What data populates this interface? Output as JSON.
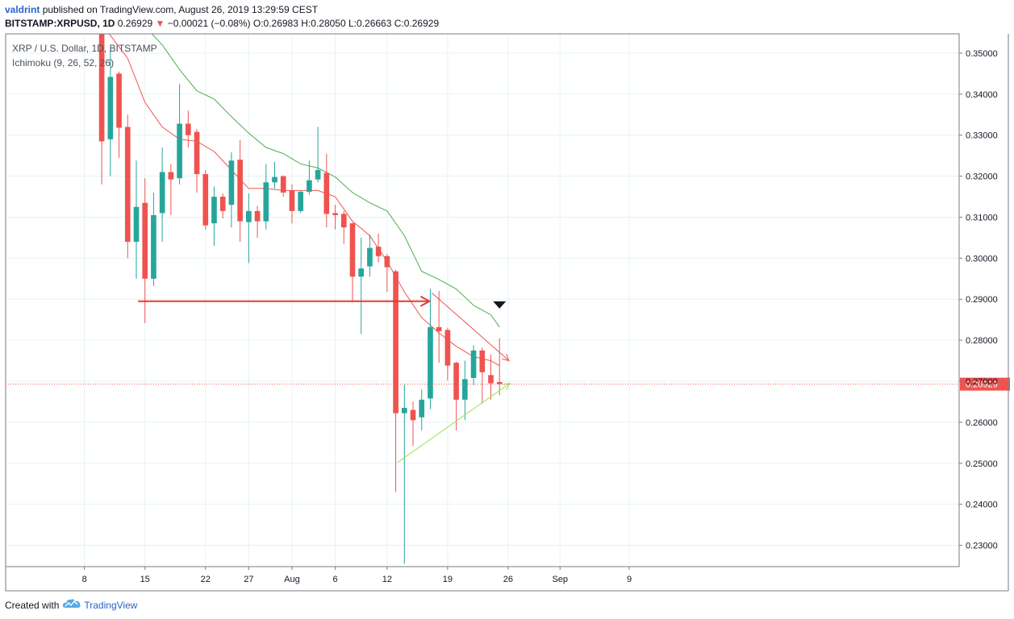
{
  "header": {
    "author": "valdrint",
    "published_text": "published on TradingView.com, August 26, 2019 13:29:59 CEST",
    "symbol_interval": "BITSTAMP:XRPUSD, 1D",
    "last_price": "0.26929",
    "change_text": "−0.00021 (−0.08%)",
    "ohlc": {
      "o_label": "O:",
      "o": "0.26983",
      "h_label": "H:",
      "h": "0.28050",
      "l_label": "L:",
      "l": "0.26663",
      "c_label": "C:",
      "c": "0.26929"
    }
  },
  "legend": {
    "title": "XRP / U.S. Dollar, 1D, BITSTAMP",
    "indicator": "Ichimoku (9, 26, 52, 26)"
  },
  "footer": {
    "created_with": "Created with",
    "brand": "TradingView"
  },
  "chart_data": {
    "type": "candlestick",
    "ylim": [
      0.2248,
      0.3547
    ],
    "y_ticks": [
      0.23,
      0.24,
      0.25,
      0.26,
      0.27,
      0.28,
      0.29,
      0.3,
      0.31,
      0.32,
      0.33,
      0.34,
      0.35
    ],
    "y_tick_labels": [
      "0.23000",
      "0.24000",
      "0.25000",
      "0.26000",
      "0.27000",
      "0.28000",
      "0.29000",
      "0.30000",
      "0.31000",
      "0.32000",
      "0.33000",
      "0.34000",
      "0.35000"
    ],
    "x_axis": {
      "day_range": [
        4.3,
        43.2
      ],
      "ticks": [
        {
          "day": 8,
          "label": "8"
        },
        {
          "day": 15,
          "label": "15"
        },
        {
          "day": 22,
          "label": "22"
        },
        {
          "day": 27,
          "label": "27"
        },
        {
          "day": 32,
          "label": "Aug"
        },
        {
          "day": 37,
          "label": "6"
        },
        {
          "day": 43,
          "label": "12"
        },
        {
          "day": 50,
          "label": "19"
        },
        {
          "day": 57,
          "label": "26"
        },
        {
          "day": 63,
          "label": "Sep"
        },
        {
          "day": 71,
          "label": "9"
        }
      ]
    },
    "last_price_value": 0.26929,
    "last_price_label": "0.26929",
    "colors": {
      "up": "#26a69a",
      "down": "#ef5350",
      "grid": "#e6f3f5",
      "conversion_line": "#ef5350",
      "base_line": "#4caf50",
      "support_line": "#a5e86b",
      "resistance_line": "#ef5350",
      "horizontal_arrow": "#e53935",
      "marker": "#131722",
      "price_tag": "#ef5350"
    },
    "candles": [
      {
        "day": 10,
        "o": 0.355,
        "h": 0.36,
        "l": 0.318,
        "c": 0.3285
      },
      {
        "day": 11,
        "o": 0.329,
        "h": 0.351,
        "l": 0.32,
        "c": 0.3442
      },
      {
        "day": 12,
        "o": 0.345,
        "h": 0.3455,
        "l": 0.3245,
        "c": 0.3318
      },
      {
        "day": 13,
        "o": 0.332,
        "h": 0.335,
        "l": 0.3,
        "c": 0.304
      },
      {
        "day": 14,
        "o": 0.304,
        "h": 0.3238,
        "l": 0.295,
        "c": 0.3125
      },
      {
        "day": 15,
        "o": 0.3135,
        "h": 0.3195,
        "l": 0.2842,
        "c": 0.295
      },
      {
        "day": 16,
        "o": 0.295,
        "h": 0.316,
        "l": 0.2932,
        "c": 0.3105
      },
      {
        "day": 17,
        "o": 0.311,
        "h": 0.327,
        "l": 0.304,
        "c": 0.321
      },
      {
        "day": 18,
        "o": 0.321,
        "h": 0.323,
        "l": 0.3105,
        "c": 0.3192
      },
      {
        "day": 19,
        "o": 0.3195,
        "h": 0.3425,
        "l": 0.318,
        "c": 0.3328
      },
      {
        "day": 20,
        "o": 0.3328,
        "h": 0.336,
        "l": 0.327,
        "c": 0.33
      },
      {
        "day": 21,
        "o": 0.3308,
        "h": 0.3315,
        "l": 0.316,
        "c": 0.3205
      },
      {
        "day": 22,
        "o": 0.3205,
        "h": 0.3215,
        "l": 0.307,
        "c": 0.308
      },
      {
        "day": 23,
        "o": 0.3085,
        "h": 0.3175,
        "l": 0.303,
        "c": 0.315
      },
      {
        "day": 24,
        "o": 0.315,
        "h": 0.3158,
        "l": 0.3097,
        "c": 0.3115
      },
      {
        "day": 25,
        "o": 0.313,
        "h": 0.3258,
        "l": 0.3075,
        "c": 0.3238
      },
      {
        "day": 26,
        "o": 0.324,
        "h": 0.3288,
        "l": 0.304,
        "c": 0.309
      },
      {
        "day": 27,
        "o": 0.3088,
        "h": 0.3158,
        "l": 0.2988,
        "c": 0.3115
      },
      {
        "day": 28,
        "o": 0.3115,
        "h": 0.3128,
        "l": 0.305,
        "c": 0.309
      },
      {
        "day": 29,
        "o": 0.309,
        "h": 0.323,
        "l": 0.307,
        "c": 0.3185
      },
      {
        "day": 30,
        "o": 0.3185,
        "h": 0.3235,
        "l": 0.317,
        "c": 0.3198
      },
      {
        "day": 31,
        "o": 0.32,
        "h": 0.3202,
        "l": 0.315,
        "c": 0.316
      },
      {
        "day": 32,
        "o": 0.3165,
        "h": 0.318,
        "l": 0.3085,
        "c": 0.3115
      },
      {
        "day": 33,
        "o": 0.3115,
        "h": 0.3165,
        "l": 0.311,
        "c": 0.3162
      },
      {
        "day": 34,
        "o": 0.3162,
        "h": 0.3238,
        "l": 0.3155,
        "c": 0.319
      },
      {
        "day": 35,
        "o": 0.3192,
        "h": 0.332,
        "l": 0.3185,
        "c": 0.3215
      },
      {
        "day": 36,
        "o": 0.3208,
        "h": 0.3255,
        "l": 0.3075,
        "c": 0.3108
      },
      {
        "day": 37,
        "o": 0.311,
        "h": 0.313,
        "l": 0.307,
        "c": 0.3105
      },
      {
        "day": 38,
        "o": 0.3108,
        "h": 0.3115,
        "l": 0.3035,
        "c": 0.3075
      },
      {
        "day": 39,
        "o": 0.3085,
        "h": 0.3087,
        "l": 0.2895,
        "c": 0.2955
      },
      {
        "day": 40,
        "o": 0.2955,
        "h": 0.305,
        "l": 0.2815,
        "c": 0.2975
      },
      {
        "day": 41,
        "o": 0.298,
        "h": 0.3058,
        "l": 0.2955,
        "c": 0.3025
      },
      {
        "day": 42,
        "o": 0.3028,
        "h": 0.306,
        "l": 0.299,
        "c": 0.3005
      },
      {
        "day": 43,
        "o": 0.3005,
        "h": 0.301,
        "l": 0.2918,
        "c": 0.2978
      },
      {
        "day": 44,
        "o": 0.2968,
        "h": 0.2972,
        "l": 0.243,
        "c": 0.2622
      },
      {
        "day": 45,
        "o": 0.2622,
        "h": 0.2692,
        "l": 0.2255,
        "c": 0.2635
      },
      {
        "day": 46,
        "o": 0.263,
        "h": 0.265,
        "l": 0.2542,
        "c": 0.2605
      },
      {
        "day": 47,
        "o": 0.2612,
        "h": 0.268,
        "l": 0.258,
        "c": 0.2655
      },
      {
        "day": 48,
        "o": 0.2658,
        "h": 0.2925,
        "l": 0.2632,
        "c": 0.2832
      },
      {
        "day": 49,
        "o": 0.2832,
        "h": 0.292,
        "l": 0.2745,
        "c": 0.2822
      },
      {
        "day": 50,
        "o": 0.2825,
        "h": 0.283,
        "l": 0.2702,
        "c": 0.2738
      },
      {
        "day": 51,
        "o": 0.2745,
        "h": 0.2748,
        "l": 0.258,
        "c": 0.2655
      },
      {
        "day": 52,
        "o": 0.2655,
        "h": 0.275,
        "l": 0.2605,
        "c": 0.2705
      },
      {
        "day": 53,
        "o": 0.2708,
        "h": 0.2788,
        "l": 0.269,
        "c": 0.2775
      },
      {
        "day": 54,
        "o": 0.2775,
        "h": 0.2782,
        "l": 0.2645,
        "c": 0.2722
      },
      {
        "day": 55,
        "o": 0.2715,
        "h": 0.2765,
        "l": 0.2655,
        "c": 0.2695
      },
      {
        "day": 56,
        "o": 0.2698,
        "h": 0.2805,
        "l": 0.2666,
        "c": 0.2693
      }
    ],
    "conversion_line": [
      [
        10.4,
        0.356
      ],
      [
        13,
        0.3487
      ],
      [
        15,
        0.338
      ],
      [
        17,
        0.332
      ],
      [
        19,
        0.329
      ],
      [
        21,
        0.3285
      ],
      [
        23,
        0.326
      ],
      [
        25,
        0.3215
      ],
      [
        27,
        0.317
      ],
      [
        29,
        0.317
      ],
      [
        31,
        0.3165
      ],
      [
        33,
        0.3165
      ],
      [
        35,
        0.3165
      ],
      [
        37,
        0.315
      ],
      [
        39,
        0.309
      ],
      [
        41,
        0.3055
      ],
      [
        43,
        0.2992
      ],
      [
        45,
        0.2918
      ],
      [
        47,
        0.2855
      ],
      [
        49,
        0.2818
      ],
      [
        51,
        0.2785
      ],
      [
        53,
        0.276
      ],
      [
        55,
        0.275
      ],
      [
        56,
        0.2738
      ]
    ],
    "base_line": [
      [
        12,
        0.359
      ],
      [
        15,
        0.3565
      ],
      [
        17,
        0.352
      ],
      [
        19,
        0.346
      ],
      [
        21,
        0.3408
      ],
      [
        23,
        0.3388
      ],
      [
        25,
        0.3345
      ],
      [
        27,
        0.3305
      ],
      [
        29,
        0.327
      ],
      [
        31,
        0.3255
      ],
      [
        33,
        0.323
      ],
      [
        35,
        0.322
      ],
      [
        37,
        0.3198
      ],
      [
        39,
        0.316
      ],
      [
        41,
        0.3135
      ],
      [
        43,
        0.3115
      ],
      [
        45,
        0.3055
      ],
      [
        47,
        0.2968
      ],
      [
        49,
        0.2948
      ],
      [
        51,
        0.2925
      ],
      [
        53,
        0.2885
      ],
      [
        55,
        0.2862
      ],
      [
        56,
        0.2832
      ]
    ],
    "annotations": {
      "horizontal_arrow": {
        "from": [
          14.2,
          0.2895
        ],
        "to": [
          47.9,
          0.2895
        ]
      },
      "resistance_line": {
        "from": [
          48.2,
          0.2915
        ],
        "to": [
          57.1,
          0.275
        ]
      },
      "support_line": {
        "from": [
          44.2,
          0.2502
        ],
        "to": [
          57.2,
          0.2695
        ]
      },
      "marker": {
        "day": 56.0,
        "value": 0.2885
      }
    }
  }
}
